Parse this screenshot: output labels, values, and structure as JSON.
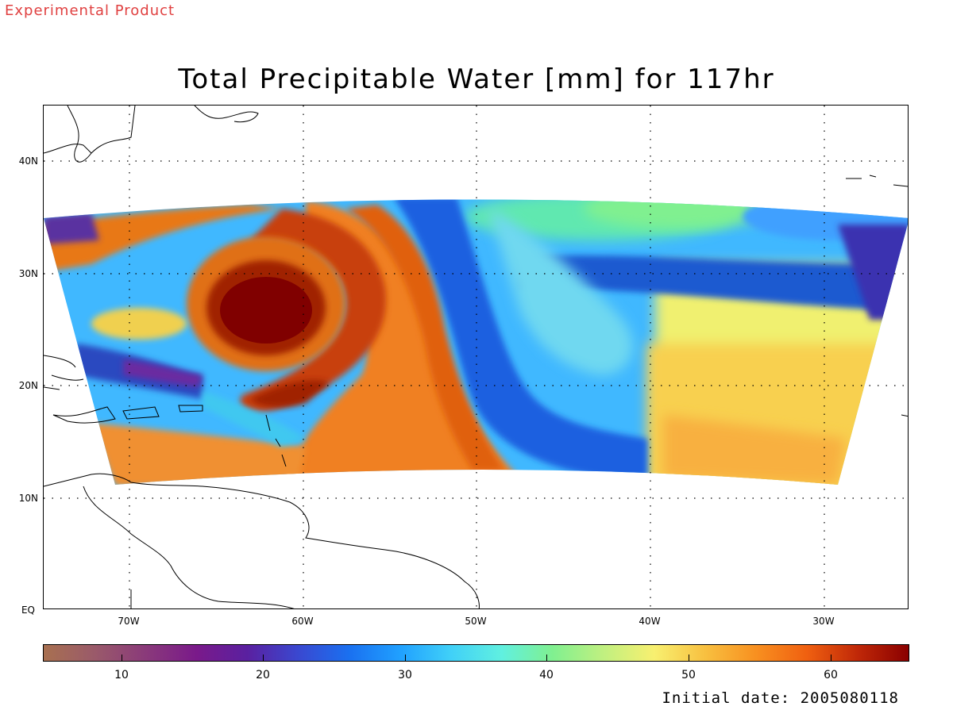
{
  "header": {
    "product_label": "Experimental Product",
    "title": "Total Precipitable Water [mm] for 117hr"
  },
  "map": {
    "lat_labels": [
      "40N",
      "30N",
      "20N",
      "10N",
      "EQ"
    ],
    "lon_labels": [
      "70W",
      "60W",
      "50W",
      "40W",
      "30W"
    ]
  },
  "colorbar": {
    "tick_labels": [
      "10",
      "20",
      "30",
      "40",
      "50",
      "60"
    ],
    "colors": [
      "#a87050",
      "#9a5a6a",
      "#8a3a7a",
      "#7a1a8a",
      "#5a20a0",
      "#3a48d0",
      "#1a70f0",
      "#20a0ff",
      "#40d0f8",
      "#60f0e0",
      "#80f090",
      "#c0f080",
      "#f8f070",
      "#f8c040",
      "#f89020",
      "#f06010",
      "#c02808",
      "#8a0000"
    ]
  },
  "footer": {
    "initial_date": "Initial date: 2005080118"
  }
}
